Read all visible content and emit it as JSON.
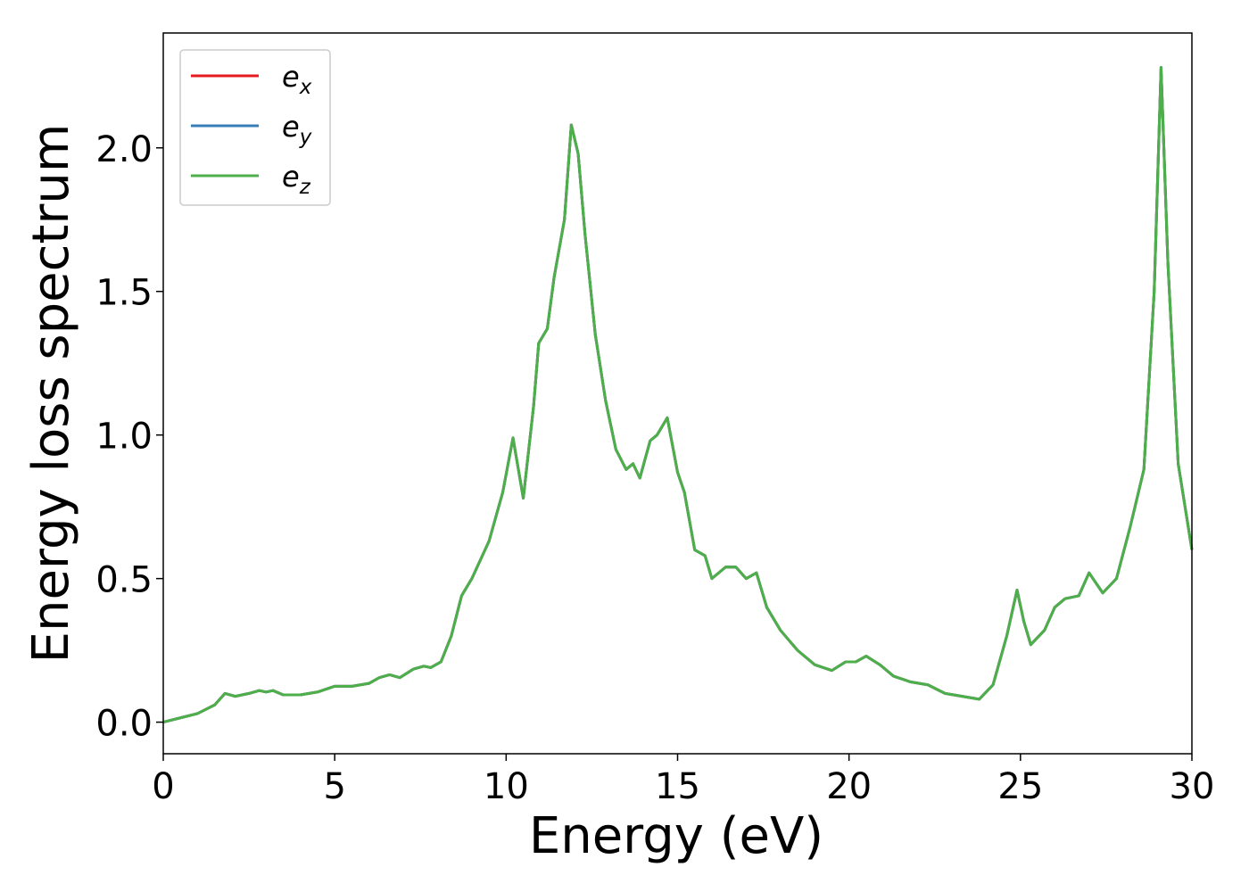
{
  "chart_data": {
    "type": "line",
    "xlabel": "Energy (eV)",
    "ylabel": "Energy loss spectrum",
    "x": [
      0,
      0.5,
      1.0,
      1.5,
      1.8,
      2.1,
      2.5,
      2.8,
      3.0,
      3.2,
      3.5,
      4.0,
      4.5,
      5.0,
      5.5,
      6.0,
      6.3,
      6.6,
      6.9,
      7.3,
      7.6,
      7.8,
      8.1,
      8.4,
      8.7,
      9.0,
      9.5,
      9.9,
      10.2,
      10.5,
      10.8,
      10.95,
      11.2,
      11.4,
      11.7,
      11.9,
      12.1,
      12.3,
      12.6,
      12.9,
      13.2,
      13.5,
      13.7,
      13.9,
      14.2,
      14.4,
      14.7,
      15.0,
      15.2,
      15.5,
      15.8,
      16.0,
      16.4,
      16.7,
      17.0,
      17.3,
      17.6,
      18.0,
      18.5,
      19.0,
      19.5,
      19.9,
      20.2,
      20.5,
      20.9,
      21.3,
      21.8,
      22.3,
      22.8,
      23.3,
      23.8,
      24.2,
      24.6,
      24.9,
      25.1,
      25.3,
      25.7,
      26.0,
      26.3,
      26.7,
      27.0,
      27.4,
      27.8,
      28.2,
      28.6,
      28.9,
      29.1,
      29.3,
      29.6,
      30.0
    ],
    "series": [
      {
        "name": "ex",
        "color": "#e41a1c",
        "values": [
          0.0,
          0.015,
          0.03,
          0.06,
          0.1,
          0.09,
          0.1,
          0.11,
          0.105,
          0.11,
          0.095,
          0.095,
          0.105,
          0.125,
          0.125,
          0.135,
          0.155,
          0.165,
          0.155,
          0.185,
          0.195,
          0.19,
          0.21,
          0.3,
          0.44,
          0.5,
          0.63,
          0.8,
          0.99,
          0.78,
          1.1,
          1.32,
          1.37,
          1.55,
          1.75,
          2.08,
          1.98,
          1.7,
          1.35,
          1.12,
          0.95,
          0.88,
          0.9,
          0.85,
          0.98,
          1.0,
          1.06,
          0.87,
          0.8,
          0.6,
          0.58,
          0.5,
          0.54,
          0.54,
          0.5,
          0.52,
          0.4,
          0.32,
          0.25,
          0.2,
          0.18,
          0.21,
          0.21,
          0.23,
          0.2,
          0.16,
          0.14,
          0.13,
          0.1,
          0.09,
          0.08,
          0.13,
          0.3,
          0.46,
          0.35,
          0.27,
          0.32,
          0.4,
          0.43,
          0.44,
          0.52,
          0.45,
          0.5,
          0.68,
          0.88,
          1.5,
          2.28,
          1.6,
          0.9,
          0.6
        ]
      },
      {
        "name": "ey",
        "color": "#377eb8",
        "values": [
          0.0,
          0.015,
          0.03,
          0.06,
          0.1,
          0.09,
          0.1,
          0.11,
          0.105,
          0.11,
          0.095,
          0.095,
          0.105,
          0.125,
          0.125,
          0.135,
          0.155,
          0.165,
          0.155,
          0.185,
          0.195,
          0.19,
          0.21,
          0.3,
          0.44,
          0.5,
          0.63,
          0.8,
          0.99,
          0.78,
          1.1,
          1.32,
          1.37,
          1.55,
          1.75,
          2.08,
          1.98,
          1.7,
          1.35,
          1.12,
          0.95,
          0.88,
          0.9,
          0.85,
          0.98,
          1.0,
          1.06,
          0.87,
          0.8,
          0.6,
          0.58,
          0.5,
          0.54,
          0.54,
          0.5,
          0.52,
          0.4,
          0.32,
          0.25,
          0.2,
          0.18,
          0.21,
          0.21,
          0.23,
          0.2,
          0.16,
          0.14,
          0.13,
          0.1,
          0.09,
          0.08,
          0.13,
          0.3,
          0.46,
          0.35,
          0.27,
          0.32,
          0.4,
          0.43,
          0.44,
          0.52,
          0.45,
          0.5,
          0.68,
          0.88,
          1.5,
          2.28,
          1.6,
          0.9,
          0.6
        ]
      },
      {
        "name": "ez",
        "color": "#4daf4a",
        "values": [
          0.0,
          0.015,
          0.03,
          0.06,
          0.1,
          0.09,
          0.1,
          0.11,
          0.105,
          0.11,
          0.095,
          0.095,
          0.105,
          0.125,
          0.125,
          0.135,
          0.155,
          0.165,
          0.155,
          0.185,
          0.195,
          0.19,
          0.21,
          0.3,
          0.44,
          0.5,
          0.63,
          0.8,
          0.99,
          0.78,
          1.1,
          1.32,
          1.37,
          1.55,
          1.75,
          2.08,
          1.98,
          1.7,
          1.35,
          1.12,
          0.95,
          0.88,
          0.9,
          0.85,
          0.98,
          1.0,
          1.06,
          0.87,
          0.8,
          0.6,
          0.58,
          0.5,
          0.54,
          0.54,
          0.5,
          0.52,
          0.4,
          0.32,
          0.25,
          0.2,
          0.18,
          0.21,
          0.21,
          0.23,
          0.2,
          0.16,
          0.14,
          0.13,
          0.1,
          0.09,
          0.08,
          0.13,
          0.3,
          0.46,
          0.35,
          0.27,
          0.32,
          0.4,
          0.43,
          0.44,
          0.52,
          0.45,
          0.5,
          0.68,
          0.88,
          1.5,
          2.28,
          1.6,
          0.9,
          0.6
        ]
      }
    ],
    "xlim": [
      0,
      30
    ],
    "ylim": [
      -0.11,
      2.4
    ],
    "xticks": [
      0,
      5,
      10,
      15,
      20,
      25,
      30
    ],
    "yticks": [
      {
        "value": 0,
        "label": "0.0"
      },
      0.5,
      {
        "value": 1,
        "label": "1.0"
      },
      1.5,
      {
        "value": 2,
        "label": "2.0"
      }
    ],
    "legend": "upper left"
  }
}
